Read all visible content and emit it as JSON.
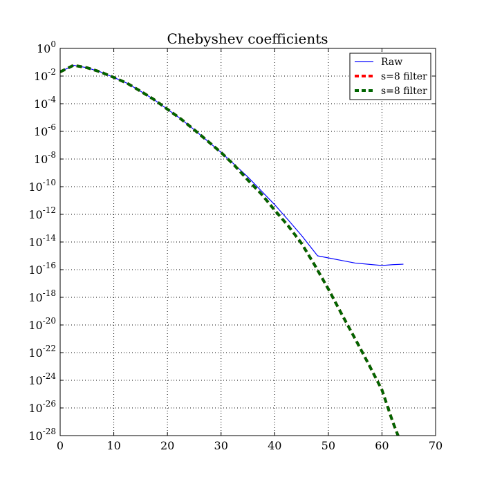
{
  "chart_data": {
    "type": "line",
    "title": "Chebyshev coefficients",
    "xlabel": "",
    "ylabel": "",
    "y_scale": "log",
    "xlim": [
      0,
      70
    ],
    "ylim": [
      1e-28,
      1
    ],
    "x_ticks": [
      0,
      10,
      20,
      30,
      40,
      50,
      60,
      70
    ],
    "y_ticks": [
      {
        "base": "10",
        "exp": "0"
      },
      {
        "base": "10",
        "exp": "-2"
      },
      {
        "base": "10",
        "exp": "-4"
      },
      {
        "base": "10",
        "exp": "-6"
      },
      {
        "base": "10",
        "exp": "-8"
      },
      {
        "base": "10",
        "exp": "-10"
      },
      {
        "base": "10",
        "exp": "-12"
      },
      {
        "base": "10",
        "exp": "-14"
      },
      {
        "base": "10",
        "exp": "-16"
      },
      {
        "base": "10",
        "exp": "-18"
      },
      {
        "base": "10",
        "exp": "-20"
      },
      {
        "base": "10",
        "exp": "-22"
      },
      {
        "base": "10",
        "exp": "-24"
      },
      {
        "base": "10",
        "exp": "-26"
      },
      {
        "base": "10",
        "exp": "-28"
      }
    ],
    "grid": true,
    "legend_position": "top-right",
    "series": [
      {
        "name": "Raw",
        "color": "#0000ff",
        "style": "solid",
        "points": [
          [
            0,
            0.02
          ],
          [
            2.5,
            0.06
          ],
          [
            5,
            0.04
          ],
          [
            7.5,
            0.02
          ],
          [
            10,
            0.008
          ],
          [
            12.5,
            0.003
          ],
          [
            15,
            0.0008
          ],
          [
            17.5,
            0.0002
          ],
          [
            20,
            4e-05
          ],
          [
            22.5,
            8e-06
          ],
          [
            25,
            1.3e-06
          ],
          [
            27.5,
            2e-07
          ],
          [
            30,
            3e-08
          ],
          [
            32.5,
            4e-09
          ],
          [
            35,
            5e-10
          ],
          [
            37.5,
            5e-11
          ],
          [
            40,
            5e-12
          ],
          [
            42.5,
            4e-13
          ],
          [
            45,
            3e-14
          ],
          [
            48,
            1e-15
          ],
          [
            55,
            3e-16
          ],
          [
            60,
            2e-16
          ],
          [
            62,
            2.3e-16
          ],
          [
            64,
            2.5e-16
          ]
        ]
      },
      {
        "name": "s=8 filter",
        "color": "#ff0000",
        "style": "dashed",
        "points": [
          [
            0,
            0.02
          ],
          [
            2.5,
            0.06
          ],
          [
            5,
            0.04
          ],
          [
            7.5,
            0.02
          ],
          [
            10,
            0.008
          ],
          [
            12.5,
            0.003
          ],
          [
            15,
            0.0008
          ],
          [
            17.5,
            0.0002
          ],
          [
            20,
            4e-05
          ],
          [
            22.5,
            8e-06
          ],
          [
            25,
            1.3e-06
          ],
          [
            27.5,
            2e-07
          ],
          [
            30,
            3e-08
          ],
          [
            32.5,
            3.5e-09
          ],
          [
            35,
            3e-10
          ],
          [
            37.5,
            3e-11
          ],
          [
            40,
            2e-12
          ],
          [
            42.5,
            1.5e-13
          ],
          [
            45,
            8e-15
          ],
          [
            47.5,
            2e-16
          ],
          [
            50,
            4e-18
          ],
          [
            52.5,
            6e-20
          ],
          [
            55,
            1e-21
          ],
          [
            57.5,
            1.5e-23
          ],
          [
            60,
            2e-25
          ],
          [
            62,
            1e-27
          ],
          [
            64,
            1e-29
          ]
        ]
      },
      {
        "name": "s=8 filter",
        "color": "#006400",
        "style": "dashed",
        "points": [
          [
            0,
            0.02
          ],
          [
            2.5,
            0.06
          ],
          [
            5,
            0.04
          ],
          [
            7.5,
            0.02
          ],
          [
            10,
            0.008
          ],
          [
            12.5,
            0.003
          ],
          [
            15,
            0.0008
          ],
          [
            17.5,
            0.0002
          ],
          [
            20,
            4e-05
          ],
          [
            22.5,
            8e-06
          ],
          [
            25,
            1.3e-06
          ],
          [
            27.5,
            2e-07
          ],
          [
            30,
            3e-08
          ],
          [
            32.5,
            3.5e-09
          ],
          [
            35,
            3e-10
          ],
          [
            37.5,
            3e-11
          ],
          [
            40,
            2e-12
          ],
          [
            42.5,
            1.5e-13
          ],
          [
            45,
            8e-15
          ],
          [
            47.5,
            2e-16
          ],
          [
            50,
            4e-18
          ],
          [
            52.5,
            6e-20
          ],
          [
            55,
            1e-21
          ],
          [
            57.5,
            1.5e-23
          ],
          [
            60,
            2e-25
          ],
          [
            62,
            1e-27
          ],
          [
            64,
            1e-29
          ]
        ]
      }
    ]
  }
}
